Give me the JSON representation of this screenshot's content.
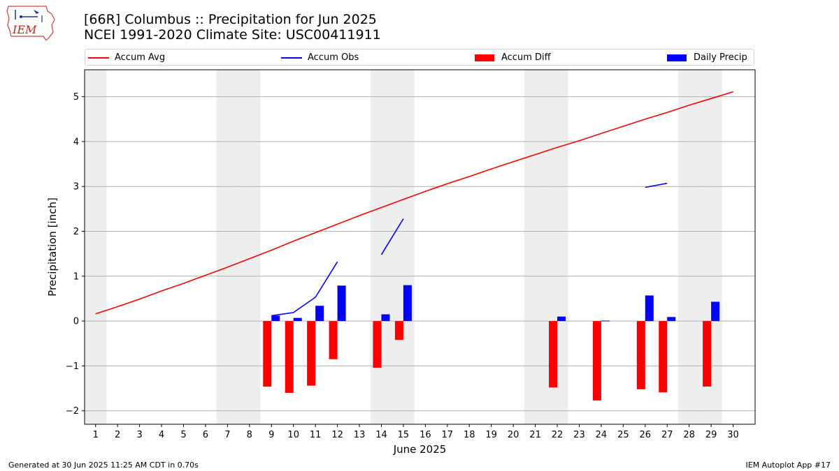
{
  "logo_text": "IEM",
  "title_line1": "[66R] Columbus :: Precipitation for Jun 2025",
  "title_line2": "NCEI 1991-2020 Climate Site: USC00411911",
  "footer_left": "Generated at 30 Jun 2025 11:25 AM CDT in 0.70s",
  "footer_right": "IEM Autoplot App #17",
  "colors": {
    "accum_avg": "#ff0000",
    "accum_obs": "#0000ff",
    "accum_diff": "#ff0000",
    "daily_precip": "#0000ff",
    "weekend_shade": "#eeeeee",
    "grid": "#b0b0b0"
  },
  "chart_data": {
    "type": "bar",
    "xlabel": "June 2025",
    "ylabel": "Precipitation [inch]",
    "xlim": [
      0.5,
      31.0
    ],
    "ylim": [
      -2.3,
      5.6
    ],
    "yticks": [
      -2,
      -1,
      0,
      1,
      2,
      3,
      4,
      5
    ],
    "ytick_labels": [
      "−2",
      "−1",
      "0",
      "1",
      "2",
      "3",
      "4",
      "5"
    ],
    "x": [
      1,
      2,
      3,
      4,
      5,
      6,
      7,
      8,
      9,
      10,
      11,
      12,
      13,
      14,
      15,
      16,
      17,
      18,
      19,
      20,
      21,
      22,
      23,
      24,
      25,
      26,
      27,
      28,
      29,
      30
    ],
    "grid": "y",
    "legend_position": "top",
    "shaded_days": [
      1,
      7,
      8,
      14,
      15,
      21,
      22,
      28,
      29
    ],
    "legend": [
      "Accum Avg",
      "Accum Obs",
      "Accum Diff",
      "Daily Precip"
    ],
    "series": [
      {
        "name": "Accum Avg",
        "kind": "line",
        "values": [
          0.16,
          0.32,
          0.49,
          0.67,
          0.84,
          1.02,
          1.2,
          1.39,
          1.58,
          1.78,
          1.97,
          2.16,
          2.35,
          2.53,
          2.71,
          2.89,
          3.06,
          3.22,
          3.39,
          3.55,
          3.71,
          3.87,
          4.02,
          4.18,
          4.34,
          4.5,
          4.65,
          4.81,
          4.96,
          5.11
        ]
      },
      {
        "name": "Accum Obs",
        "kind": "line",
        "values": [
          null,
          null,
          null,
          null,
          null,
          null,
          null,
          null,
          0.12,
          0.19,
          0.53,
          1.32,
          null,
          1.48,
          2.28,
          null,
          null,
          null,
          null,
          null,
          null,
          null,
          null,
          null,
          null,
          2.98,
          3.07,
          null,
          null,
          null
        ]
      },
      {
        "name": "Accum Diff",
        "kind": "bar",
        "values": [
          null,
          null,
          null,
          null,
          null,
          null,
          null,
          null,
          -1.46,
          -1.6,
          -1.44,
          -0.85,
          null,
          -1.04,
          -0.42,
          null,
          null,
          null,
          null,
          null,
          null,
          -1.48,
          null,
          -1.77,
          null,
          -1.52,
          -1.59,
          null,
          -1.46,
          null
        ]
      },
      {
        "name": "Daily Precip",
        "kind": "bar",
        "values": [
          null,
          null,
          null,
          null,
          null,
          null,
          null,
          null,
          0.12,
          0.07,
          0.34,
          0.79,
          null,
          0.15,
          0.8,
          null,
          null,
          null,
          null,
          null,
          null,
          0.1,
          null,
          0.01,
          null,
          0.57,
          0.09,
          null,
          0.43,
          null
        ]
      }
    ]
  }
}
